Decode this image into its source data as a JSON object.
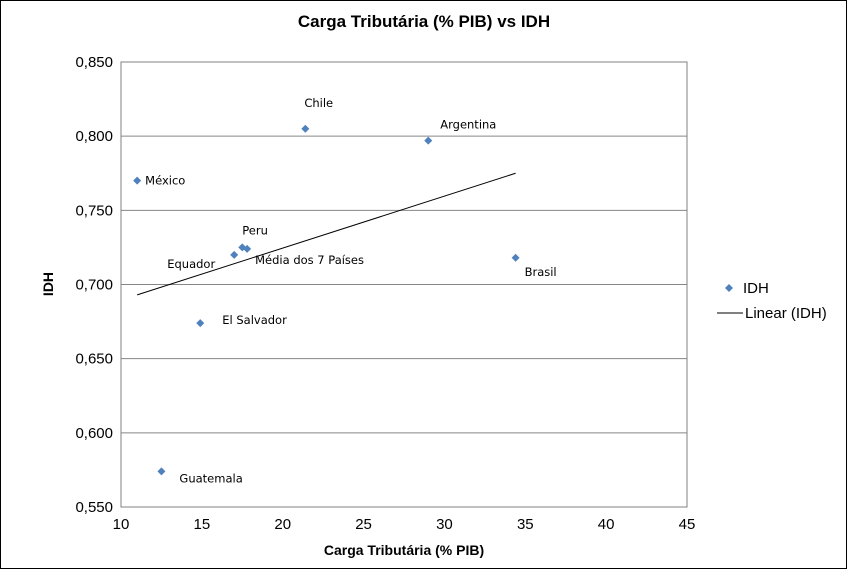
{
  "chart_data": {
    "type": "scatter",
    "title": "Carga Tributária (% PIB) vs IDH",
    "xlabel": "Carga Tributária (% PIB)",
    "ylabel": "IDH",
    "xlim": [
      10,
      45
    ],
    "ylim": [
      0.55,
      0.85
    ],
    "x_ticks": [
      10,
      15,
      20,
      25,
      30,
      35,
      40,
      45
    ],
    "y_ticks": [
      0.55,
      0.6,
      0.65,
      0.7,
      0.75,
      0.8,
      0.85
    ],
    "y_tick_labels": [
      "0,550",
      "0,600",
      "0,650",
      "0,700",
      "0,750",
      "0,800",
      "0,850"
    ],
    "grid": "horizontal",
    "legend_position": "right",
    "series": [
      {
        "name": "IDH",
        "color": "#4F81BD",
        "marker": "diamond",
        "points": [
          {
            "label": "México",
            "x": 11.0,
            "y": 0.77
          },
          {
            "label": "Chile",
            "x": 21.4,
            "y": 0.805
          },
          {
            "label": "Argentina",
            "x": 29.0,
            "y": 0.797
          },
          {
            "label": "Peru",
            "x": 17.5,
            "y": 0.725
          },
          {
            "label": "Equador",
            "x": 17.0,
            "y": 0.72
          },
          {
            "label": "Média dos 7 Países",
            "x": 17.8,
            "y": 0.724
          },
          {
            "label": "Brasil",
            "x": 34.4,
            "y": 0.718
          },
          {
            "label": "El Salvador",
            "x": 14.9,
            "y": 0.674
          },
          {
            "label": "Guatemala",
            "x": 12.5,
            "y": 0.574
          }
        ]
      }
    ],
    "trendline": {
      "name": "Linear (IDH)",
      "type": "linear",
      "color": "#000000",
      "x": [
        11.0,
        34.4
      ],
      "y": [
        0.693,
        0.775
      ]
    }
  }
}
